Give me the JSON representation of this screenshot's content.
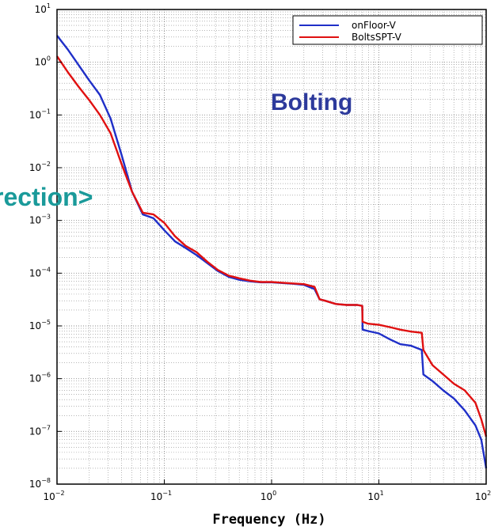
{
  "chart_data": {
    "type": "line",
    "xlabel": "Frequency (Hz)",
    "ylabel": "",
    "xscale": "log",
    "yscale": "log",
    "xlim": [
      0.01,
      100
    ],
    "ylim": [
      1e-08,
      10
    ],
    "grid": true,
    "legend_position": "top-right",
    "x_ticks": [
      {
        "base": "10",
        "exp": "−2"
      },
      {
        "base": "10",
        "exp": "−1"
      },
      {
        "base": "10",
        "exp": "0"
      },
      {
        "base": "10",
        "exp": "1"
      },
      {
        "base": "10",
        "exp": "2"
      }
    ],
    "y_ticks": [
      {
        "base": "10",
        "exp": "1"
      },
      {
        "base": "10",
        "exp": "0"
      },
      {
        "base": "10",
        "exp": "−1"
      },
      {
        "base": "10",
        "exp": "−2"
      },
      {
        "base": "10",
        "exp": "−3"
      },
      {
        "base": "10",
        "exp": "−4"
      },
      {
        "base": "10",
        "exp": "−5"
      },
      {
        "base": "10",
        "exp": "−6"
      },
      {
        "base": "10",
        "exp": "−7"
      },
      {
        "base": "10",
        "exp": "−8"
      }
    ],
    "series": [
      {
        "name": "onFloor-V",
        "color": "#1f2fc8",
        "x": [
          0.01,
          0.0126,
          0.0158,
          0.02,
          0.0251,
          0.0316,
          0.0398,
          0.0501,
          0.0631,
          0.0794,
          0.1,
          0.126,
          0.158,
          0.2,
          0.251,
          0.316,
          0.398,
          0.501,
          0.631,
          0.794,
          1,
          1.26,
          1.58,
          2,
          2.51,
          2.8,
          3.16,
          3.98,
          5.01,
          6.31,
          7.0,
          7.05,
          7.94,
          10,
          12.6,
          15.8,
          20,
          25.1,
          26,
          31.6,
          39.8,
          50.1,
          63.1,
          79.4,
          90,
          100
        ],
        "y": [
          3.2,
          1.75,
          0.9,
          0.45,
          0.24,
          0.085,
          0.018,
          0.0035,
          0.0013,
          0.0011,
          0.00065,
          0.0004,
          0.0003,
          0.00022,
          0.000155,
          0.00011,
          8.5e-05,
          7.5e-05,
          7e-05,
          6.7e-05,
          6.7e-05,
          6.5e-05,
          6.3e-05,
          6e-05,
          5e-05,
          3.2e-05,
          3e-05,
          2.6e-05,
          2.5e-05,
          2.5e-05,
          2.4e-05,
          8.5e-06,
          8e-06,
          7.2e-06,
          5.6e-06,
          4.5e-06,
          4.2e-06,
          3.5e-06,
          1.2e-06,
          9e-07,
          6e-07,
          4.2e-07,
          2.5e-07,
          1.3e-07,
          7e-08,
          2e-08
        ]
      },
      {
        "name": "BoltsSPT-V",
        "color": "#e01010",
        "x": [
          0.01,
          0.0126,
          0.0158,
          0.02,
          0.0251,
          0.0316,
          0.0398,
          0.0501,
          0.0631,
          0.0794,
          0.1,
          0.126,
          0.158,
          0.2,
          0.251,
          0.316,
          0.398,
          0.501,
          0.631,
          0.794,
          1,
          1.26,
          1.58,
          2,
          2.51,
          2.8,
          3.16,
          3.98,
          5.01,
          6.31,
          7.0,
          7.05,
          7.94,
          10,
          12.6,
          15.8,
          20,
          25.1,
          26,
          31.6,
          39.8,
          50.1,
          63.1,
          79.4,
          90,
          100
        ],
        "y": [
          1.3,
          0.65,
          0.35,
          0.19,
          0.1,
          0.045,
          0.012,
          0.0035,
          0.0014,
          0.0013,
          0.0009,
          0.0005,
          0.00033,
          0.00025,
          0.000165,
          0.000115,
          9e-05,
          8e-05,
          7.2e-05,
          6.8e-05,
          6.8e-05,
          6.6e-05,
          6.4e-05,
          6.2e-05,
          5.5e-05,
          3.2e-05,
          3e-05,
          2.6e-05,
          2.5e-05,
          2.5e-05,
          2.4e-05,
          1.2e-05,
          1.1e-05,
          1.05e-05,
          9.5e-06,
          8.5e-06,
          7.8e-06,
          7.4e-06,
          3.5e-06,
          1.8e-06,
          1.2e-06,
          8e-07,
          6e-07,
          3.5e-07,
          1.7e-07,
          8e-08
        ]
      }
    ],
    "annotations": [
      {
        "text": "Bolting",
        "color": "#2d3a9c"
      },
      {
        "text": "rection>",
        "color": "#1a9a9a"
      }
    ]
  }
}
